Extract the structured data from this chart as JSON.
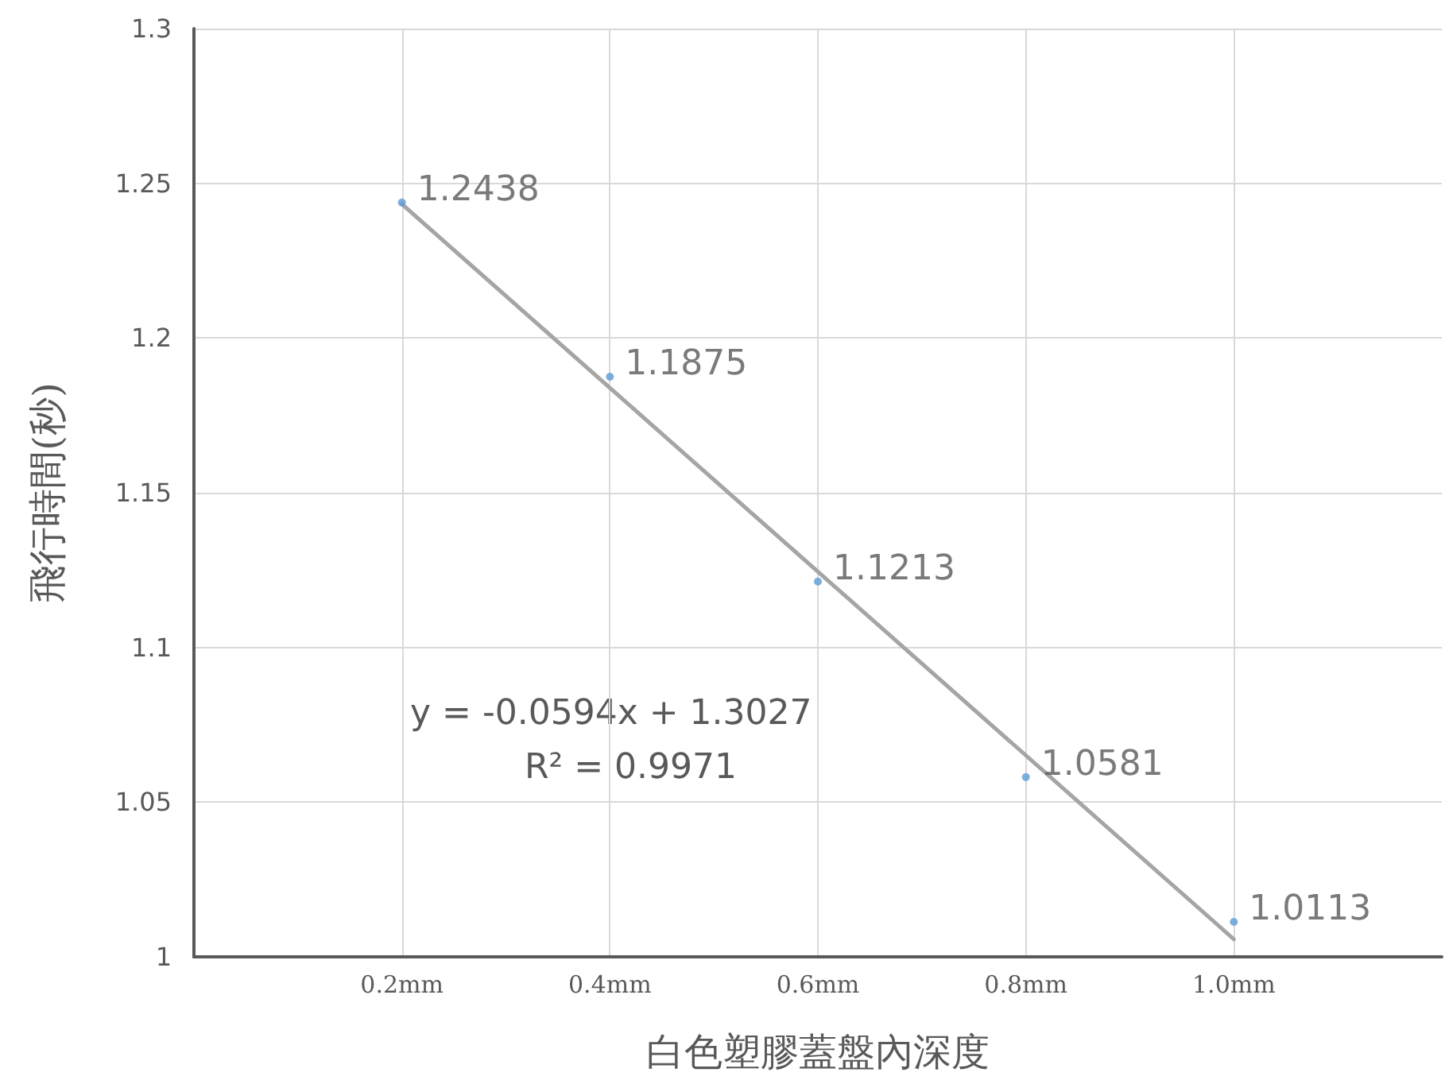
{
  "chart_data": {
    "type": "scatter",
    "xlabel": "白色塑膠蓋盤內深度",
    "ylabel": "飛行時間(秒)",
    "xlim": [
      0,
      1.2
    ],
    "xticks": [
      {
        "value": 0.2,
        "label": "0.2mm"
      },
      {
        "value": 0.4,
        "label": "0.4mm"
      },
      {
        "value": 0.6,
        "label": "0.6mm"
      },
      {
        "value": 0.8,
        "label": "0.8mm"
      },
      {
        "value": 1.0,
        "label": "1.0mm"
      }
    ],
    "ylim": [
      1,
      1.3
    ],
    "yticks": [
      1,
      1.05,
      1.1,
      1.15,
      1.2,
      1.25,
      1.3
    ],
    "grid": true,
    "series": [
      {
        "type": "line",
        "color": "#a5a5a5",
        "x": [
          0.2,
          1.0
        ],
        "values": [
          1.2433,
          1.0057
        ],
        "marker": "none"
      },
      {
        "color": "#5b9bd5",
        "x": [
          0.2,
          0.4,
          0.6,
          0.8,
          1.0
        ],
        "values": [
          1.2438,
          1.1875,
          1.1213,
          1.0581,
          1.0113
        ],
        "marker": "circle",
        "data_labels": true
      }
    ],
    "annotations": [
      "y = -0.0594x + 1.3027",
      "R² = 0.9971"
    ]
  }
}
